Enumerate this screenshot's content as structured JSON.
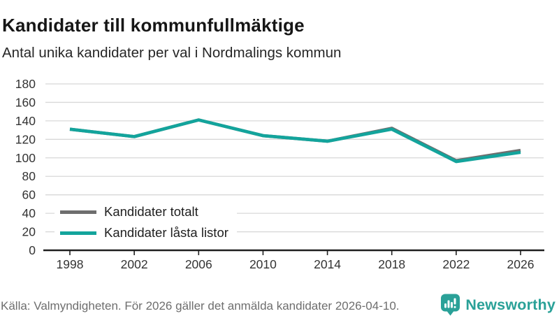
{
  "header": {
    "title": "Kandidater till kommunfullmäktige",
    "subtitle": "Antal unika kandidater per val i Nordmalings kommun"
  },
  "chart_data": {
    "type": "line",
    "categories": [
      "1998",
      "2002",
      "2006",
      "2010",
      "2014",
      "2018",
      "2022",
      "2026"
    ],
    "series": [
      {
        "name": "Kandidater totalt",
        "color": "#6e6e6e",
        "values": [
          131,
          123,
          141,
          124,
          118,
          132,
          97,
          108
        ]
      },
      {
        "name": "Kandidater låsta listor",
        "color": "#13a49c",
        "values": [
          131,
          123,
          141,
          124,
          118,
          131,
          96,
          106
        ]
      }
    ],
    "title": "Kandidater till kommunfullmäktige",
    "subtitle": "Antal unika kandidater per val i Nordmalings kommun",
    "xlabel": "",
    "ylabel": "",
    "ylim": [
      0,
      180
    ],
    "ytick_step": 20,
    "grid": true,
    "legend_position": "inside-lower-left",
    "colors": {
      "grid": "#d8d8d8",
      "axis": "#1f1f1f",
      "tick_label": "#333333"
    }
  },
  "footer": {
    "source": "Källa: Valmyndigheten. För 2026 gäller det anmälda kandidater 2026-04-10.",
    "brand": "Newsworthy"
  }
}
